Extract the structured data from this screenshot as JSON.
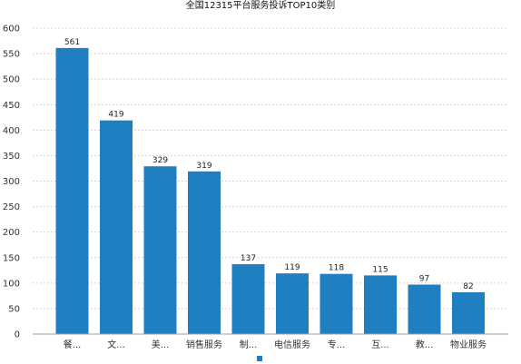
{
  "chart_data": {
    "type": "bar",
    "title": "全国12315平台服务投诉TOP10类别",
    "categories": [
      "餐...",
      "文...",
      "美...",
      "销售服务",
      "制...",
      "电信服务",
      "专...",
      "互...",
      "教...",
      "物业服务"
    ],
    "values": [
      561,
      419,
      329,
      319,
      137,
      119,
      118,
      115,
      97,
      82
    ],
    "ylim": [
      0,
      600
    ],
    "yticks": [
      0,
      50,
      100,
      150,
      200,
      250,
      300,
      350,
      400,
      450,
      500,
      550,
      600
    ],
    "grid": true,
    "legend_position": "bottom-center",
    "colors": {
      "bar": "#1f7fc0",
      "grid": "#f2c9c9",
      "axis": "#9aa0a6"
    }
  }
}
